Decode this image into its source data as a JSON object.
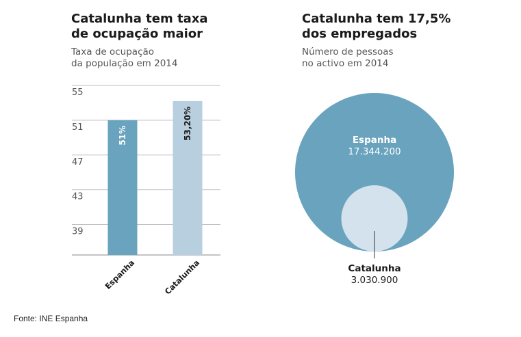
{
  "left": {
    "title": "Catalunha tem taxa\nde ocupação maior",
    "subtitle": "Taxa de ocupação\nda população em 2014"
  },
  "right": {
    "title": "Catalunha tem 17,5%\ndos empregados",
    "subtitle": "Número de pessoas\nno activo em 2014"
  },
  "source": "Fonte: INE Espanha",
  "colors": {
    "espanha": "#6aa3be",
    "catalunha": "#b7cfde",
    "catalunha_circle": "#d3e2ec",
    "grid": "#bdbdbd"
  },
  "chart_data": [
    {
      "type": "bar",
      "categories": [
        "Espanha",
        "Catalunha"
      ],
      "values": [
        51,
        53.2
      ],
      "data_labels": [
        "51%",
        "53,20%"
      ],
      "yticks": [
        55,
        51,
        47,
        43,
        39
      ],
      "ylim": [
        35.5,
        55
      ],
      "grid": true
    },
    {
      "type": "proportional-circles",
      "categories": [
        "Espanha",
        "Catalunha"
      ],
      "values": [
        17344200,
        3030900
      ],
      "data_labels": [
        "17.344.200",
        "3.030.900"
      ]
    }
  ]
}
